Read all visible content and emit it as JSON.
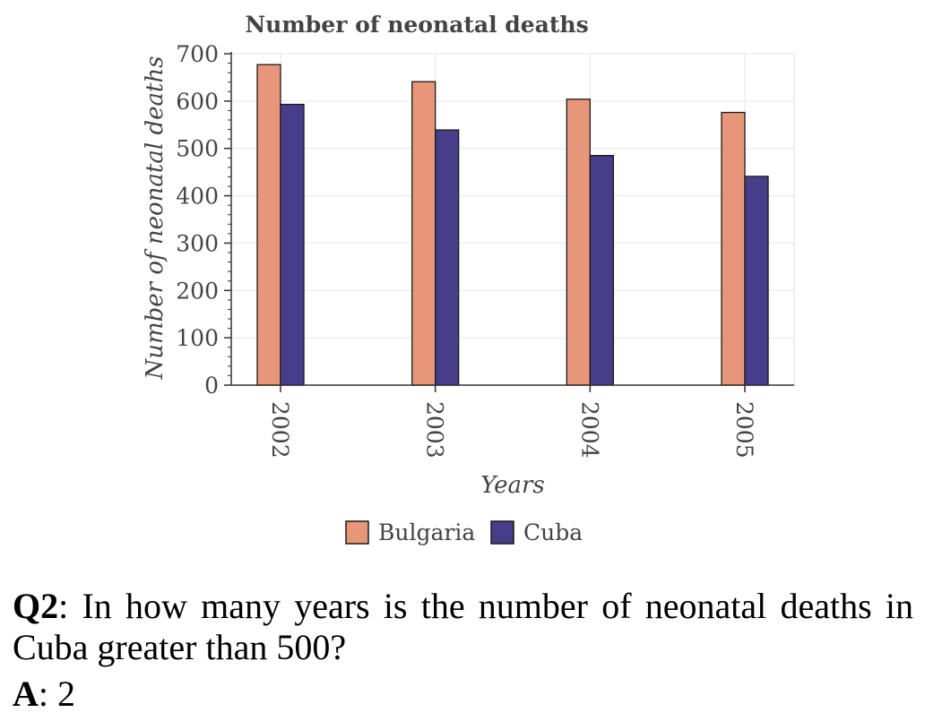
{
  "chart_data": {
    "type": "bar",
    "title": "Number of neonatal deaths",
    "xlabel": "Years",
    "ylabel": "Number of neonatal deaths",
    "categories": [
      "2002",
      "2003",
      "2004",
      "2005"
    ],
    "series": [
      {
        "name": "Bulgaria",
        "color": "#E8967A",
        "values": [
          677,
          641,
          604,
          576
        ]
      },
      {
        "name": "Cuba",
        "color": "#483D8B",
        "values": [
          593,
          539,
          485,
          441
        ]
      }
    ],
    "ylim": [
      0,
      700
    ],
    "yticks": [
      0,
      100,
      200,
      300,
      400,
      500,
      600,
      700
    ],
    "grid": true,
    "legend": "bottom-center"
  },
  "qa": {
    "question_label": "Q2",
    "question_text": ": In how many years is the number of neonatal deaths in Cuba greater than 500?",
    "answer_label": "A",
    "answer_text": ": 2"
  }
}
